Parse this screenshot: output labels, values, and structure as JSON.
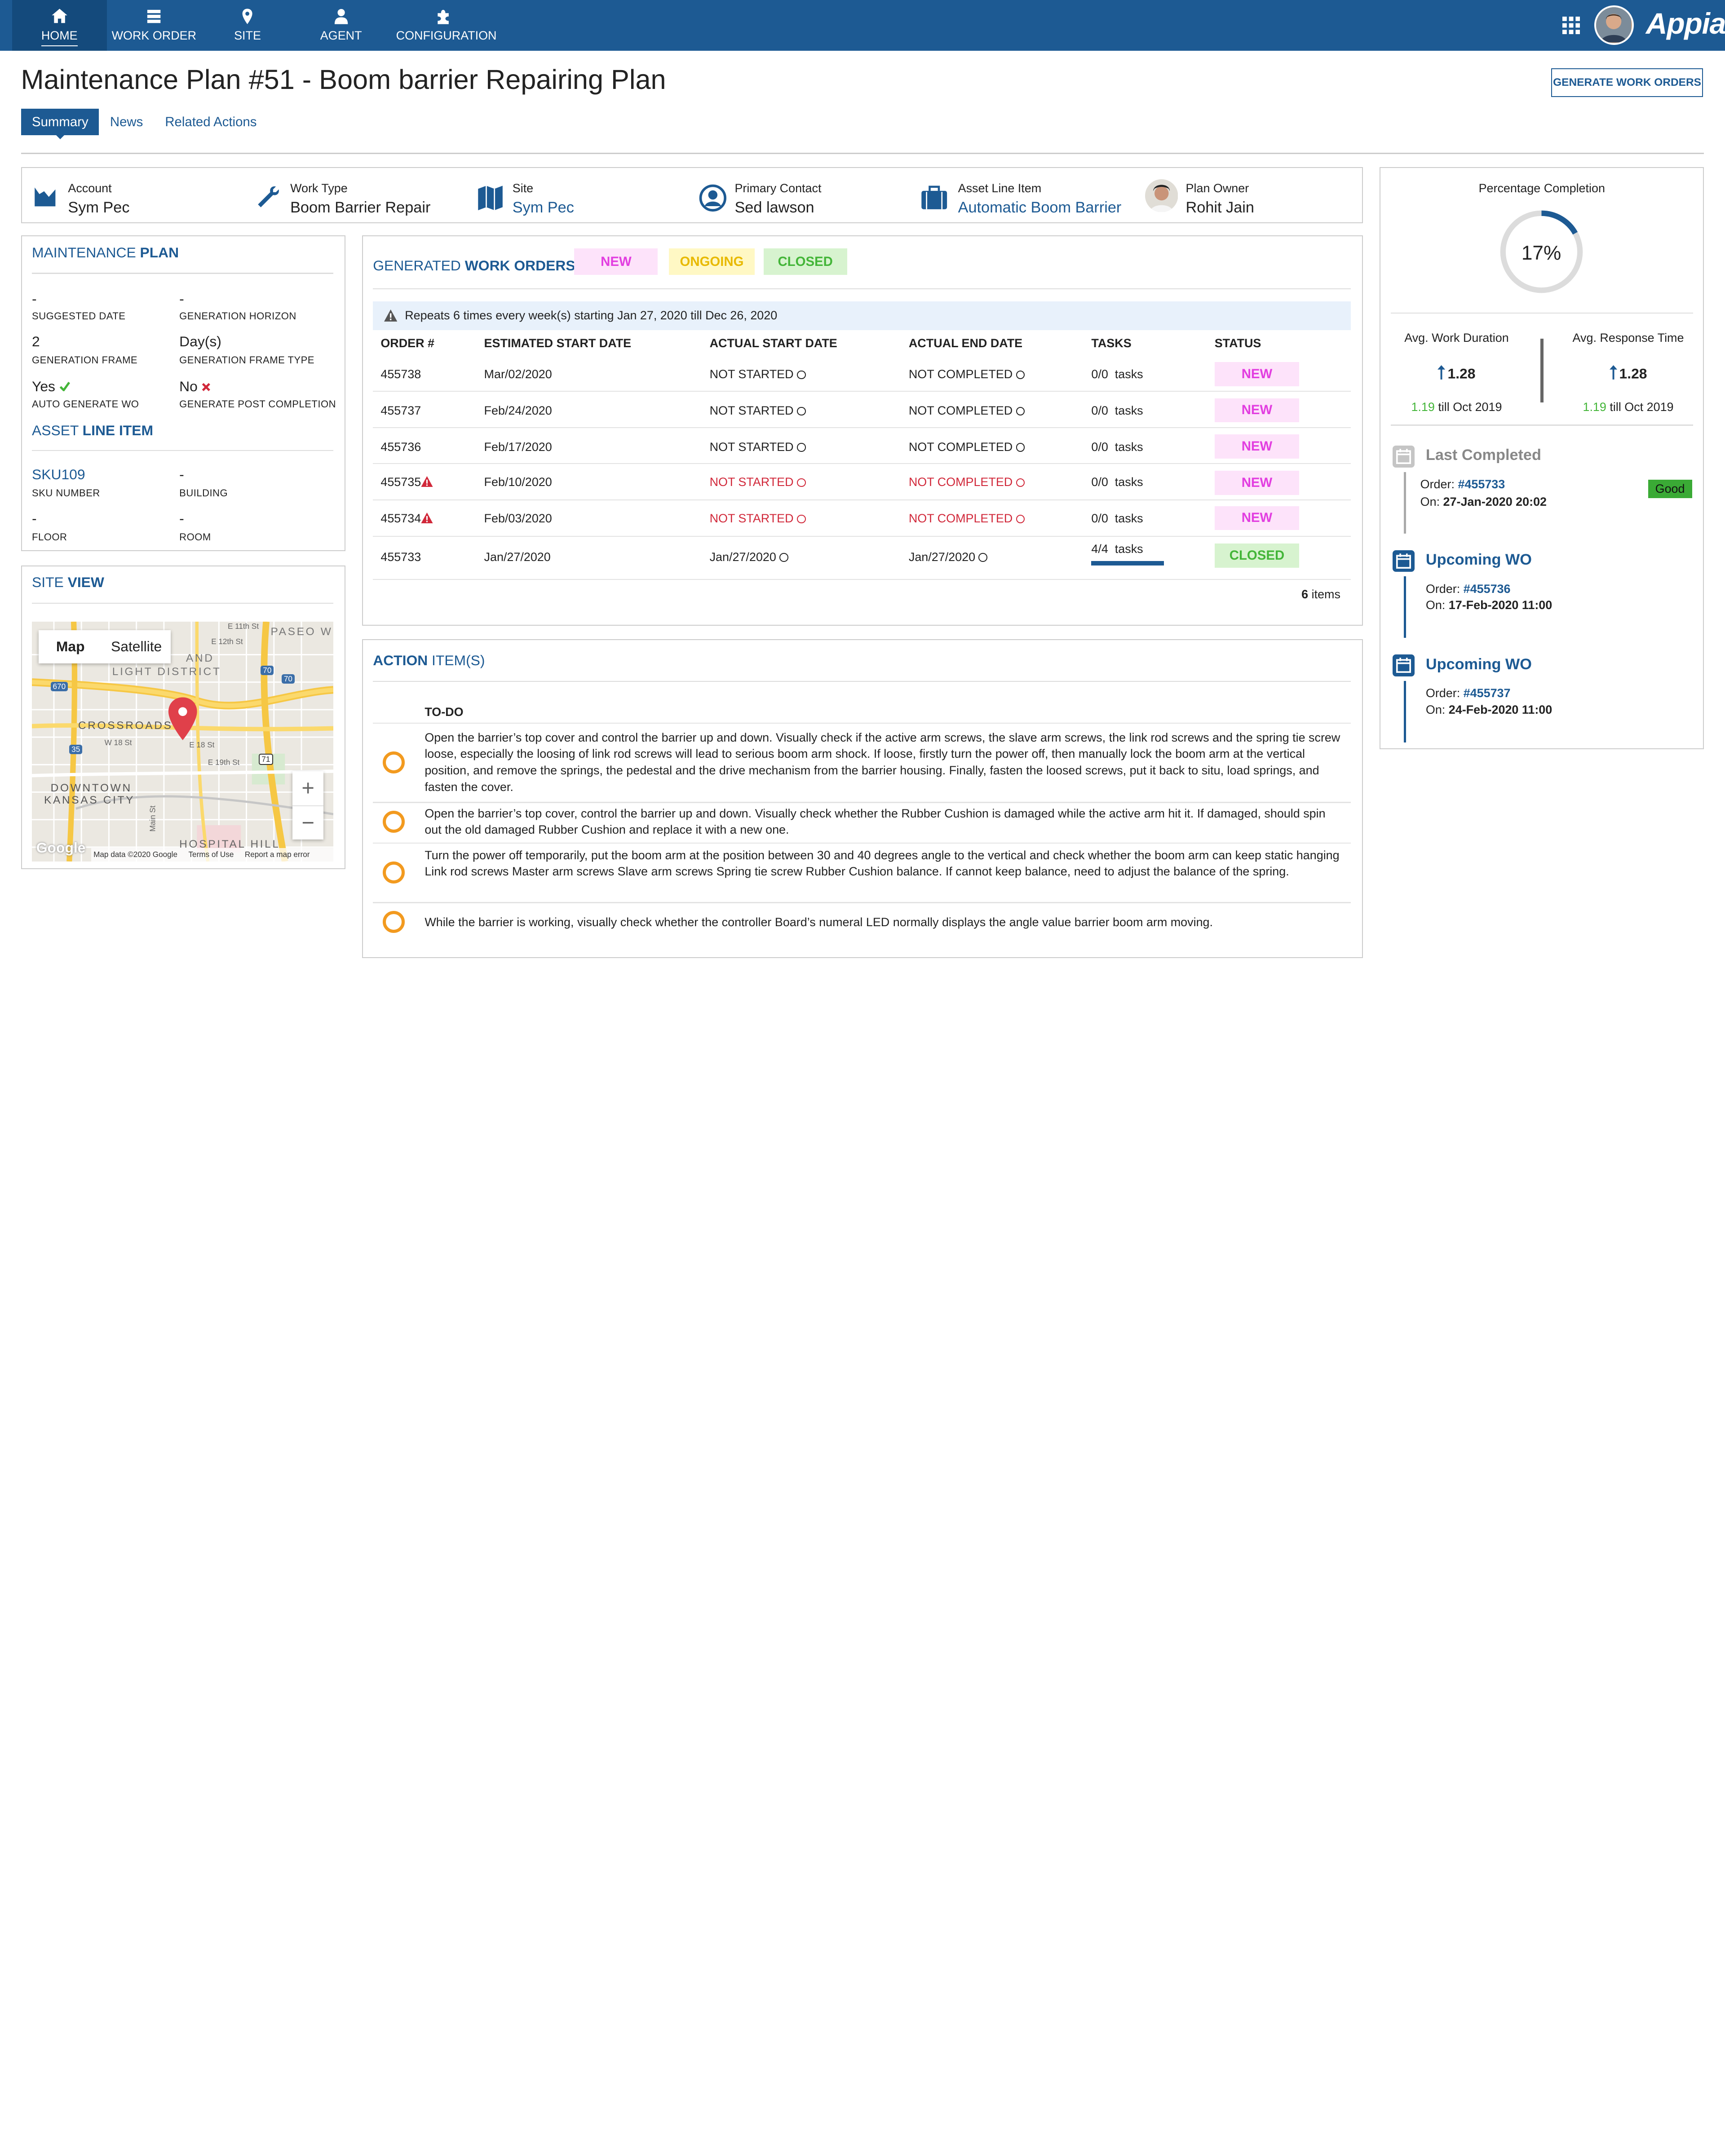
{
  "nav": {
    "items": [
      {
        "label": "HOME",
        "icon": "home-icon"
      },
      {
        "label": "WORK ORDER",
        "icon": "work-order-icon"
      },
      {
        "label": "SITE",
        "icon": "location-pin-icon"
      },
      {
        "label": "AGENT",
        "icon": "person-icon"
      },
      {
        "label": "CONFIGURATION",
        "icon": "puzzle-icon"
      }
    ],
    "brand": "Appian"
  },
  "page": {
    "title": "Maintenance Plan #51 - Boom barrier Repairing Plan",
    "generate_button": "GENERATE WORK ORDERS",
    "tabs": [
      "Summary",
      "News",
      "Related Actions"
    ]
  },
  "header_fields": [
    {
      "key": "Account",
      "value": "Sym Pec",
      "icon": "chart-icon"
    },
    {
      "key": "Work Type",
      "value": "Boom Barrier Repair",
      "icon": "wrench-icon"
    },
    {
      "key": "Site",
      "value": "Sym Pec",
      "icon": "map-icon"
    },
    {
      "key": "Primary Contact",
      "value": "Sed lawson",
      "icon": "user-circle-icon"
    },
    {
      "key": "Asset Line Item",
      "value": "Automatic Boom Barrier",
      "icon": "briefcase-icon"
    },
    {
      "key": "Plan Owner",
      "value": "Rohit Jain",
      "icon": "avatar"
    }
  ],
  "maintenance_plan": {
    "title_a": "MAINTENANCE ",
    "title_b": "PLAN",
    "fields": [
      {
        "value": "-",
        "label": "SUGGESTED DATE"
      },
      {
        "value": "-",
        "label": "GENERATION HORIZON"
      },
      {
        "value": "2",
        "label": "GENERATION FRAME"
      },
      {
        "value": "Day(s)",
        "label": "GENERATION FRAME TYPE"
      },
      {
        "value": "Yes",
        "label": "AUTO GENERATE WO"
      },
      {
        "value": "No",
        "label": "GENERATE POST COMPLETION"
      }
    ]
  },
  "asset_line_item": {
    "title_a": "ASSET ",
    "title_b": "LINE ITEM",
    "fields": [
      {
        "value": "SKU109",
        "label": "SKU NUMBER"
      },
      {
        "value": "-",
        "label": "BUILDING"
      },
      {
        "value": "-",
        "label": "FLOOR"
      },
      {
        "value": "-",
        "label": "ROOM"
      }
    ]
  },
  "site_view": {
    "title_a": "SITE ",
    "title_b": "VIEW",
    "map_tab": "Map",
    "satellite_tab": "Satellite",
    "labels": [
      "PASEO W",
      "AND",
      "LIGHT DISTRICT",
      "CROSSROADS",
      "DOWNTOWN",
      "KANSAS CITY",
      "HOSPITAL HILL",
      "E 11th St",
      "E 12th St",
      "W 18 St",
      "E 18 St",
      "E 19th St",
      "Main St"
    ],
    "shields": [
      "670",
      "70",
      "70",
      "35",
      "71"
    ],
    "zoom_in": "+",
    "zoom_out": "−",
    "google": "Google",
    "footer": [
      "Map data ©2020 Google",
      "Terms of Use",
      "Report a map error"
    ]
  },
  "work_orders": {
    "title_a": "GENERATED ",
    "title_b": "WORK ORDERS",
    "legend": [
      "NEW",
      "ONGOING",
      "CLOSED"
    ],
    "notice": "Repeats 6 times every week(s) starting Jan 27, 2020 till Dec 26, 2020",
    "columns": [
      "ORDER #",
      "ESTIMATED START DATE",
      "ACTUAL START DATE",
      "ACTUAL END DATE",
      "TASKS",
      "STATUS"
    ],
    "rows": [
      {
        "order": "455738",
        "est": "Mar/02/2020",
        "start": "NOT STARTED",
        "end": "NOT COMPLETED",
        "tasks": "0/0  tasks",
        "status": "NEW"
      },
      {
        "order": "455737",
        "est": "Feb/24/2020",
        "start": "NOT STARTED",
        "end": "NOT COMPLETED",
        "tasks": "0/0  tasks",
        "status": "NEW"
      },
      {
        "order": "455736",
        "est": "Feb/17/2020",
        "start": "NOT STARTED",
        "end": "NOT COMPLETED",
        "tasks": "0/0  tasks",
        "status": "NEW"
      },
      {
        "order": "455735",
        "est": "Feb/10/2020",
        "start": "NOT STARTED",
        "end": "NOT COMPLETED",
        "tasks": "0/0  tasks",
        "status": "NEW"
      },
      {
        "order": "455734",
        "est": "Feb/03/2020",
        "start": "NOT STARTED",
        "end": "NOT COMPLETED",
        "tasks": "0/0  tasks",
        "status": "NEW"
      },
      {
        "order": "455733",
        "est": "Jan/27/2020",
        "start": "Jan/27/2020",
        "end": "Jan/27/2020",
        "tasks": "4/4  tasks",
        "status": "CLOSED",
        "progress": 1.0
      }
    ],
    "count_num": "6",
    "count_label": " items"
  },
  "action_items": {
    "title_a": "ACTION ",
    "title_b": "ITEM(S)",
    "column": "TO-DO",
    "items": [
      "Open the barrier’s top cover and control the barrier up and down. Visually check if the active arm screws, the slave arm screws, the link rod screws and the spring tie screw loose, especially the loosing of link rod screws will lead to serious boom arm shock. If loose, firstly turn the power off, then manually lock the boom arm at the vertical position, and remove the springs, the pedestal and the drive mechanism from the barrier housing. Finally, fasten the loosed screws, put it back to situ, load springs, and fasten the cover.",
      "Open the barrier’s top cover, control the barrier up and down. Visually check whether the Rubber Cushion is damaged while the active arm hit it. If damaged, should spin out the old damaged Rubber Cushion and replace it with a new one.",
      "Turn the power off temporarily, put the boom arm at the position between 30 and 40 degrees angle to the vertical and check whether the boom arm can keep static hanging Link rod screws Master arm screws Slave arm screws Spring tie screw Rubber Cushion balance. If cannot keep balance, need to adjust the balance of the spring.",
      "While the barrier is working, visually check whether the controller Board’s numeral LED normally displays the angle value barrier boom arm moving."
    ]
  },
  "side": {
    "completion_label": "Percentage Completion",
    "completion_value": "17%",
    "completion_fraction": 0.17,
    "avg_work_label": "Avg. Work Duration",
    "avg_work_value": "1.28",
    "avg_work_prev": "1.19",
    "avg_work_prev_suffix": " till Oct 2019",
    "avg_resp_label": "Avg. Response Time",
    "avg_resp_value": "1.28",
    "avg_resp_prev": "1.19",
    "avg_resp_prev_suffix": " till Oct 2019",
    "timeline": [
      {
        "title": "Last Completed",
        "order_prefix": "Order: ",
        "order": "#455733",
        "on_prefix": "On: ",
        "on": "27-Jan-2020 20:02",
        "badge": "Good"
      },
      {
        "title": "Upcoming WO",
        "order_prefix": "Order: ",
        "order": "#455736",
        "on_prefix": "On: ",
        "on": "17-Feb-2020 11:00"
      },
      {
        "title": "Upcoming WO",
        "order_prefix": "Order: ",
        "order": "#455737",
        "on_prefix": "On: ",
        "on": "24-Feb-2020 11:00"
      }
    ]
  },
  "colors": {
    "nav": "#1d5a93",
    "accent": "#1d5a93",
    "new": "#e23ee0",
    "ongoing": "#e8b900",
    "closed": "#43b538",
    "alert": "#d1283a",
    "todo": "#f29a1f"
  }
}
